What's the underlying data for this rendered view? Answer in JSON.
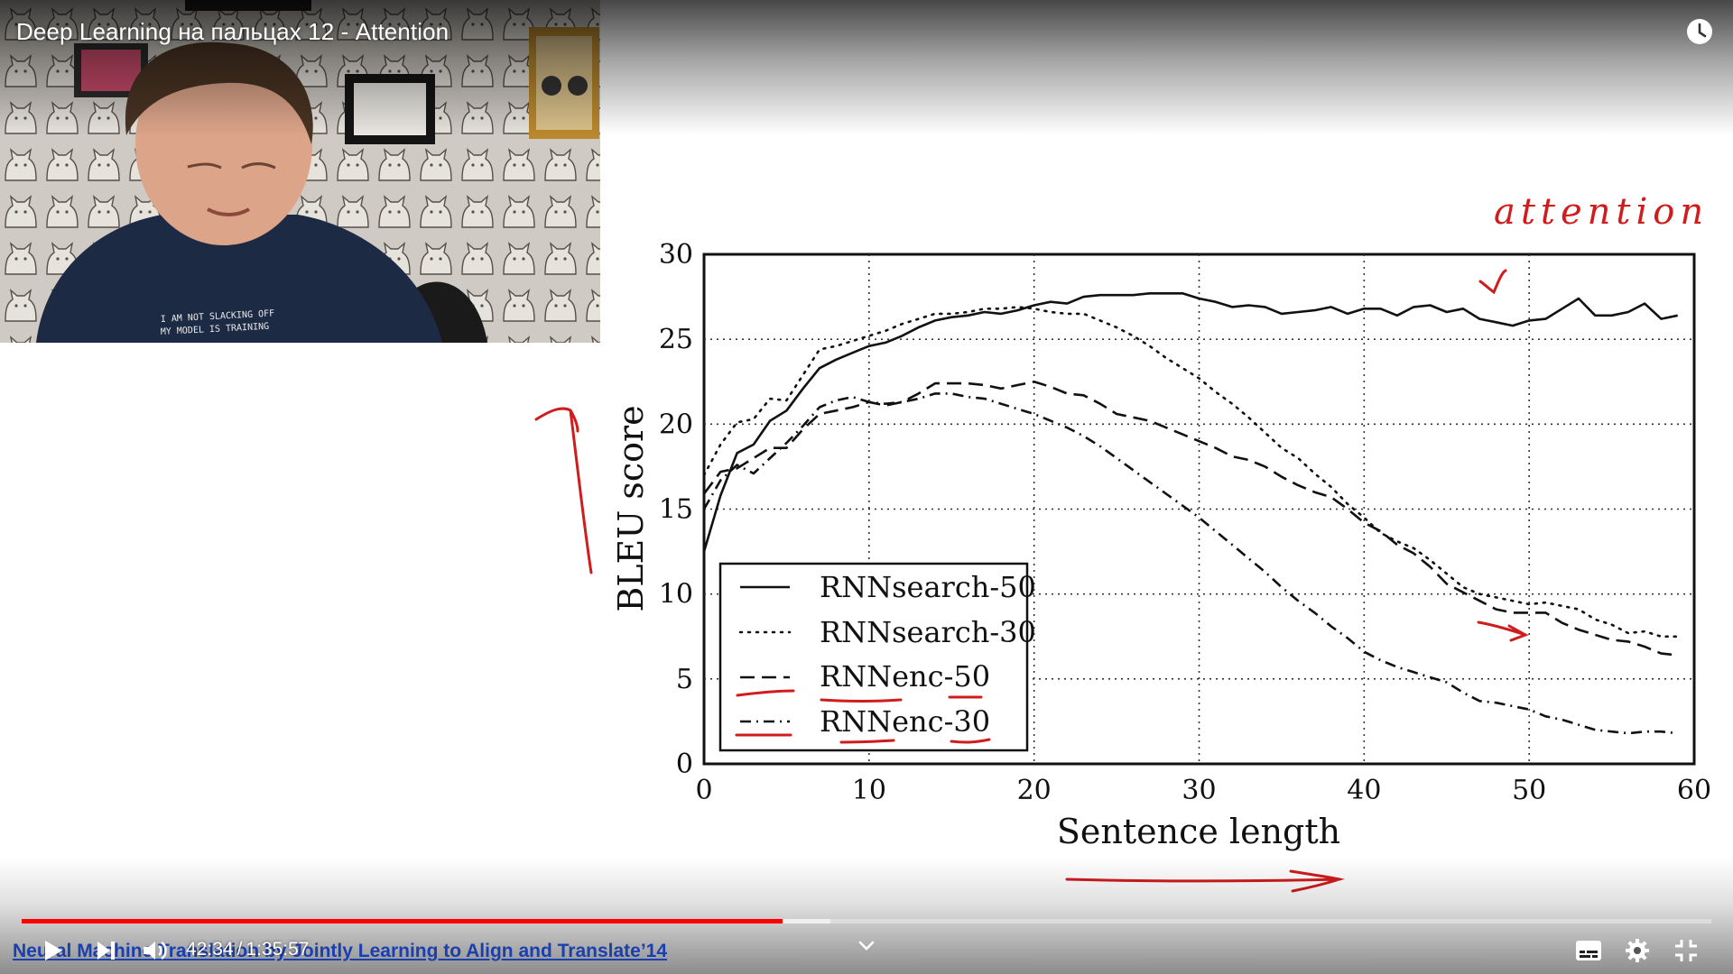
{
  "video": {
    "title": "Deep Learning на пальцах 12 - Attention",
    "current_time": "42:34",
    "time_separator": "/",
    "duration": "1:35:57",
    "played_fraction": 0.4503,
    "buffered_fraction": 0.4784,
    "slide_caption": "Neural Machine Translation by Jointly Learning to Align and Translate’14"
  },
  "colors": {
    "progress_played": "#ff0000",
    "annotation_red": "#d01c1c",
    "caption_link": "#1a3fae"
  },
  "icons": {
    "play": "play-icon",
    "next": "next-icon",
    "volume": "volume-icon",
    "watch_later": "clock-icon",
    "subtitles": "subtitles-icon",
    "settings": "gear-icon",
    "exit_fullscreen": "exit-fullscreen-icon",
    "chevron": "chevron-down-icon"
  },
  "webcam": {
    "shirt_text_line1": "I AM NOT SLACKING OFF",
    "shirt_text_line2": "MY MODEL IS TRAINING"
  },
  "annotations": {
    "attention_text": "attention"
  },
  "chart_data": {
    "type": "line",
    "xlabel": "Sentence length",
    "ylabel": "BLEU score",
    "xlim": [
      0,
      60
    ],
    "ylim": [
      0,
      30
    ],
    "x_ticks": [
      "0",
      "10",
      "20",
      "30",
      "40",
      "50",
      "60"
    ],
    "y_ticks": [
      "0",
      "5",
      "10",
      "15",
      "20",
      "25",
      "30"
    ],
    "grid": true,
    "legend_position": "bottom-left",
    "series": [
      {
        "name": "RNNsearch-50",
        "style": "solid",
        "x": [
          0,
          1,
          2,
          3,
          4,
          5,
          6,
          7,
          8,
          9,
          10,
          11,
          12,
          13,
          14,
          15,
          16,
          17,
          18,
          19,
          20,
          21,
          22,
          23,
          24,
          25,
          26,
          27,
          28,
          29,
          30,
          31,
          32,
          33,
          34,
          35,
          36,
          37,
          38,
          39,
          40,
          41,
          42,
          43,
          44,
          45,
          46,
          47,
          48,
          49,
          50,
          51,
          52,
          53,
          54,
          55,
          56,
          57,
          58,
          59
        ],
        "y": [
          12.5,
          15.8,
          18.3,
          18.8,
          20.2,
          20.8,
          22.1,
          23.3,
          23.8,
          24.2,
          24.6,
          24.8,
          25.2,
          25.7,
          26.1,
          26.3,
          26.4,
          26.6,
          26.5,
          26.7,
          27.0,
          27.2,
          27.1,
          27.5,
          27.6,
          27.6,
          27.6,
          27.7,
          27.7,
          27.7,
          27.4,
          27.2,
          26.9,
          27.0,
          26.9,
          26.5,
          26.6,
          26.7,
          26.9,
          26.5,
          26.8,
          26.8,
          26.4,
          26.9,
          27.0,
          26.6,
          26.8,
          26.2,
          26.0,
          25.8,
          26.1,
          26.2,
          26.8,
          27.4,
          26.4,
          26.4,
          26.6,
          27.1,
          26.2,
          26.4
        ]
      },
      {
        "name": "RNNsearch-30",
        "style": "dotted",
        "x": [
          0,
          1,
          2,
          3,
          4,
          5,
          6,
          7,
          8,
          9,
          10,
          11,
          12,
          13,
          14,
          15,
          16,
          17,
          18,
          19,
          20,
          21,
          22,
          23,
          24,
          25,
          26,
          27,
          28,
          29,
          30,
          31,
          32,
          33,
          34,
          35,
          36,
          37,
          38,
          39,
          40,
          41,
          42,
          43,
          44,
          45,
          46,
          47,
          48,
          49,
          50,
          51,
          52,
          53,
          54,
          55,
          56,
          57,
          58,
          59
        ],
        "y": [
          17.0,
          18.8,
          20.1,
          20.3,
          21.5,
          21.4,
          22.9,
          24.4,
          24.6,
          24.9,
          25.2,
          25.5,
          25.9,
          26.2,
          26.5,
          26.5,
          26.6,
          26.8,
          26.8,
          26.9,
          26.8,
          26.6,
          26.5,
          26.5,
          26.1,
          25.7,
          25.2,
          24.6,
          23.9,
          23.3,
          22.7,
          21.9,
          21.2,
          20.4,
          19.5,
          18.6,
          18.0,
          17.1,
          16.3,
          15.3,
          14.5,
          13.6,
          13.1,
          12.7,
          12.0,
          11.2,
          10.4,
          10.0,
          9.8,
          9.6,
          9.4,
          9.5,
          9.3,
          9.1,
          8.5,
          8.2,
          7.7,
          7.8,
          7.5,
          7.5
        ]
      },
      {
        "name": "RNNenc-50",
        "style": "dashed",
        "x": [
          0,
          1,
          2,
          3,
          4,
          5,
          6,
          7,
          8,
          9,
          10,
          11,
          12,
          13,
          14,
          15,
          16,
          17,
          18,
          19,
          20,
          21,
          22,
          23,
          24,
          25,
          26,
          27,
          28,
          29,
          30,
          31,
          32,
          33,
          34,
          35,
          36,
          37,
          38,
          39,
          40,
          41,
          42,
          43,
          44,
          45,
          46,
          47,
          48,
          49,
          50,
          51,
          52,
          53,
          54,
          55,
          56,
          57,
          58,
          59
        ],
        "y": [
          15.9,
          17.2,
          17.4,
          18.0,
          18.6,
          18.6,
          19.7,
          20.6,
          20.8,
          21.0,
          21.3,
          21.1,
          21.3,
          21.8,
          22.4,
          22.4,
          22.4,
          22.3,
          22.1,
          22.3,
          22.5,
          22.2,
          21.8,
          21.7,
          21.2,
          20.6,
          20.4,
          20.2,
          19.8,
          19.4,
          19.0,
          18.6,
          18.1,
          17.9,
          17.5,
          16.9,
          16.4,
          16.0,
          15.7,
          15.0,
          14.2,
          13.7,
          12.9,
          12.4,
          11.6,
          10.6,
          10.1,
          9.6,
          9.1,
          8.9,
          8.9,
          8.9,
          8.3,
          7.9,
          7.6,
          7.3,
          7.2,
          6.9,
          6.5,
          6.4
        ]
      },
      {
        "name": "RNNenc-30",
        "style": "dashdot",
        "x": [
          0,
          1,
          2,
          3,
          4,
          5,
          6,
          7,
          8,
          9,
          10,
          11,
          12,
          13,
          14,
          15,
          16,
          17,
          18,
          19,
          20,
          21,
          22,
          23,
          24,
          25,
          26,
          27,
          28,
          29,
          30,
          31,
          32,
          33,
          34,
          35,
          36,
          37,
          38,
          39,
          40,
          41,
          42,
          43,
          44,
          45,
          46,
          47,
          48,
          49,
          50,
          51,
          52,
          53,
          54,
          55,
          56,
          57,
          58,
          59
        ],
        "y": [
          15.0,
          16.7,
          17.6,
          17.1,
          18.0,
          18.9,
          19.9,
          21.0,
          21.4,
          21.6,
          21.3,
          21.2,
          21.3,
          21.5,
          21.8,
          21.8,
          21.6,
          21.5,
          21.2,
          20.9,
          20.6,
          20.2,
          19.8,
          19.3,
          18.7,
          18.0,
          17.3,
          16.6,
          15.9,
          15.2,
          14.5,
          13.7,
          12.9,
          12.1,
          11.3,
          10.4,
          9.6,
          8.9,
          8.1,
          7.4,
          6.6,
          6.1,
          5.7,
          5.4,
          5.1,
          4.8,
          4.2,
          3.7,
          3.6,
          3.4,
          3.2,
          2.8,
          2.6,
          2.3,
          2.0,
          1.9,
          1.8,
          1.9,
          1.9,
          1.8
        ]
      }
    ]
  }
}
